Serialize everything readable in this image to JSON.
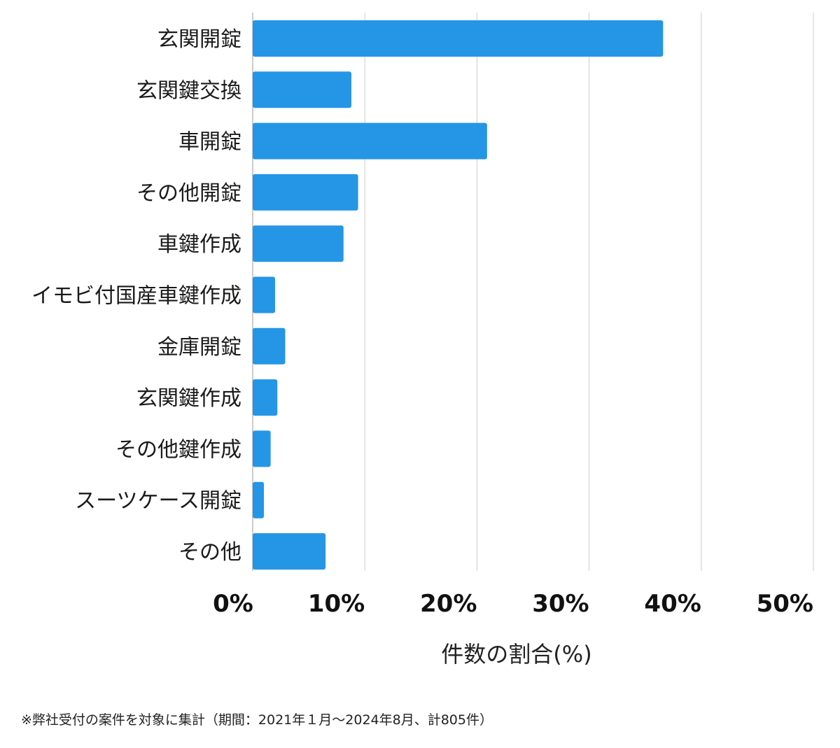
{
  "chart_data": {
    "type": "bar",
    "orientation": "horizontal",
    "categories": [
      "玄関開錠",
      "玄関鍵交換",
      "車開錠",
      "その他開錠",
      "車鍵作成",
      "イモビ付国産車鍵作成",
      "金庫開錠",
      "玄関鍵作成",
      "その他鍵作成",
      "スーツケース開錠",
      "その他"
    ],
    "values": [
      36.6,
      8.8,
      20.9,
      9.4,
      8.1,
      2.0,
      2.9,
      2.2,
      1.6,
      1.0,
      6.5
    ],
    "xlabel": "件数の割合(%)",
    "ylabel": "",
    "xlim": [
      0,
      50
    ],
    "ticks": [
      0,
      10,
      20,
      30,
      40,
      50
    ],
    "tick_labels": [
      "0%",
      "10%",
      "20%",
      "30%",
      "40%",
      "50%"
    ],
    "grid": "vertical",
    "bar_color": "#2596e6",
    "grid_color": "#cccccc"
  },
  "footnote": "※弊社受付の案件を対象に集計（期間：2021年１月〜2024年8月、計805件）"
}
